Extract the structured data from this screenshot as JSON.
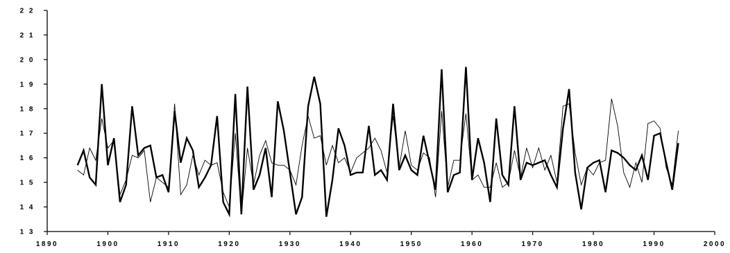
{
  "chart_data": {
    "type": "line",
    "title": "",
    "xlabel": "",
    "ylabel": "",
    "xlim": [
      1890,
      2000
    ],
    "ylim": [
      13,
      22
    ],
    "x_ticks": [
      1890,
      1900,
      1910,
      1920,
      1930,
      1940,
      1950,
      1960,
      1970,
      1980,
      1990,
      2000
    ],
    "y_ticks": [
      13,
      14,
      15,
      16,
      17,
      18,
      19,
      20,
      21,
      22
    ],
    "x_tick_labels": [
      "1890",
      "1900",
      "1910",
      "1920",
      "1930",
      "1940",
      "1950",
      "1960",
      "1970",
      "1980",
      "1990",
      "2000"
    ],
    "y_tick_labels": [
      "1 3",
      "1 4",
      "1 5",
      "1 6",
      "1 7",
      "1 8",
      "1 9",
      "2 0",
      "2 1",
      "2 2"
    ],
    "grid": false,
    "legend": "none",
    "x": [
      1895,
      1896,
      1897,
      1898,
      1899,
      1900,
      1901,
      1902,
      1903,
      1904,
      1905,
      1906,
      1907,
      1908,
      1909,
      1910,
      1911,
      1912,
      1913,
      1914,
      1915,
      1916,
      1917,
      1918,
      1919,
      1920,
      1921,
      1922,
      1923,
      1924,
      1925,
      1926,
      1927,
      1928,
      1929,
      1930,
      1931,
      1932,
      1933,
      1934,
      1935,
      1936,
      1937,
      1938,
      1939,
      1940,
      1941,
      1942,
      1943,
      1944,
      1945,
      1946,
      1947,
      1948,
      1949,
      1950,
      1951,
      1952,
      1953,
      1954,
      1955,
      1956,
      1957,
      1958,
      1959,
      1960,
      1961,
      1962,
      1963,
      1964,
      1965,
      1966,
      1967,
      1968,
      1969,
      1970,
      1971,
      1972,
      1973,
      1974,
      1975,
      1976,
      1977,
      1978,
      1979,
      1980,
      1981,
      1982,
      1983,
      1984,
      1985,
      1986,
      1987,
      1988,
      1989,
      1990,
      1991,
      1992,
      1993,
      1994
    ],
    "series": [
      {
        "style": "thick",
        "color": "#000000",
        "values": [
          15.7,
          16.3,
          15.2,
          14.9,
          19.0,
          15.7,
          16.8,
          14.2,
          14.9,
          18.1,
          16.1,
          16.4,
          16.5,
          15.2,
          15.3,
          14.6,
          17.9,
          15.8,
          16.8,
          16.3,
          14.8,
          15.2,
          15.7,
          17.7,
          14.2,
          13.7,
          18.6,
          13.7,
          18.9,
          14.7,
          15.3,
          16.4,
          14.4,
          18.3,
          17.1,
          15.4,
          13.7,
          14.4,
          18.1,
          19.3,
          18.2,
          13.6,
          15.1,
          17.2,
          16.5,
          15.3,
          15.4,
          15.4,
          17.3,
          15.3,
          15.5,
          15.1,
          18.2,
          15.5,
          16.1,
          15.5,
          15.3,
          16.9,
          15.8,
          14.7,
          19.6,
          14.6,
          15.3,
          15.4,
          19.7,
          15.1,
          16.8,
          15.8,
          14.2,
          17.6,
          15.3,
          14.9,
          18.1,
          15.1,
          15.8,
          15.7,
          15.8,
          15.9,
          15.3,
          14.8,
          17.2,
          18.8,
          15.4,
          13.9,
          15.6,
          15.8,
          15.9,
          14.6,
          16.3,
          16.2,
          16.0,
          15.7,
          15.5,
          16.1,
          15.1,
          16.9,
          17.0,
          15.8,
          14.7,
          16.6
        ]
      },
      {
        "style": "thin",
        "color": "#000000",
        "values": [
          15.5,
          15.3,
          16.4,
          15.9,
          17.6,
          16.4,
          16.7,
          14.5,
          15.1,
          16.1,
          16.0,
          16.3,
          14.2,
          15.2,
          15.0,
          14.8,
          18.2,
          14.5,
          14.9,
          16.1,
          15.3,
          15.9,
          15.7,
          15.8,
          14.6,
          14.0,
          17.0,
          13.7,
          16.4,
          14.9,
          16.1,
          16.7,
          15.8,
          15.7,
          15.7,
          15.5,
          14.9,
          16.5,
          17.7,
          16.8,
          16.9,
          15.7,
          16.5,
          15.8,
          16.0,
          15.4,
          16.0,
          16.2,
          16.4,
          16.8,
          16.3,
          15.4,
          17.7,
          15.6,
          17.1,
          15.7,
          15.5,
          16.2,
          16.0,
          14.4,
          17.9,
          14.8,
          15.9,
          15.9,
          17.8,
          15.1,
          15.3,
          14.8,
          14.8,
          15.8,
          14.8,
          15.0,
          16.3,
          15.2,
          16.4,
          15.6,
          16.4,
          15.5,
          16.1,
          15.0,
          18.1,
          18.2,
          16.2,
          14.9,
          15.6,
          15.3,
          15.8,
          15.9,
          18.4,
          17.3,
          15.4,
          14.8,
          15.8,
          15.0,
          17.4,
          17.5,
          17.2,
          15.6,
          14.9,
          17.1
        ]
      }
    ]
  }
}
